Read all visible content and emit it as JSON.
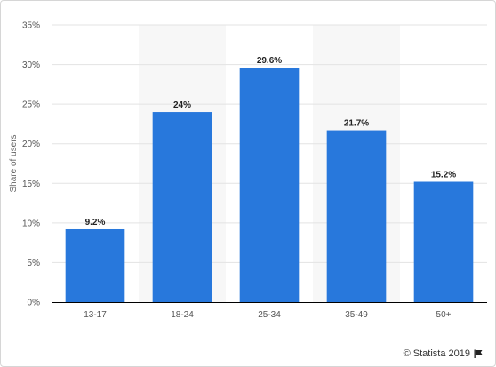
{
  "chart_data": {
    "type": "bar",
    "title": "",
    "xlabel": "",
    "ylabel": "Share of users",
    "categories": [
      "13-17",
      "18-24",
      "25-34",
      "35-49",
      "50+"
    ],
    "values": [
      9.2,
      24,
      29.6,
      21.7,
      15.2
    ],
    "data_labels": [
      "9.2%",
      "24%",
      "29.6%",
      "21.7%",
      "15.2%"
    ],
    "ylim": [
      0,
      35
    ],
    "yticks": [
      0,
      5,
      10,
      15,
      20,
      25,
      30,
      35
    ],
    "ytick_labels": [
      "0%",
      "5%",
      "10%",
      "15%",
      "20%",
      "25%",
      "30%",
      "35%"
    ],
    "grid": true,
    "legend": "none",
    "bar_color": "#2878dc",
    "alternate_band_color": "#f7f7f7"
  },
  "credit": {
    "text": "© Statista 2019",
    "icon": "flag-icon"
  }
}
